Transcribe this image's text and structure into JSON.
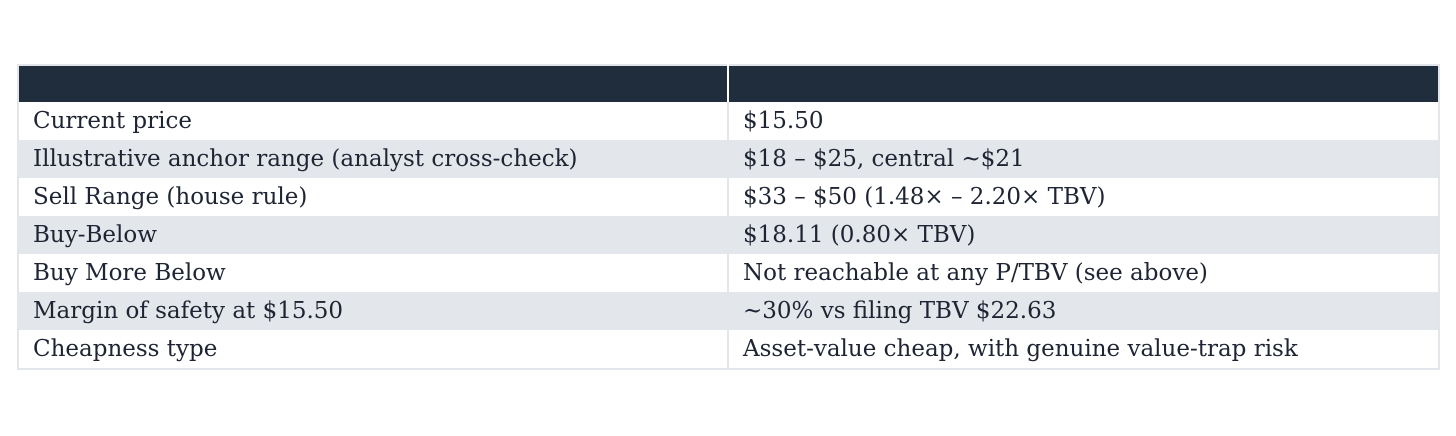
{
  "table": {
    "headers": [
      "",
      ""
    ],
    "rows": [
      {
        "label": "Current price",
        "value": "$15.50"
      },
      {
        "label": "Illustrative anchor range (analyst cross-check)",
        "value": "$18 – $25, central ~$21"
      },
      {
        "label": "Sell Range (house rule)",
        "value": "$33 – $50 (1.48× – 2.20× TBV)"
      },
      {
        "label": "Buy-Below",
        "value": "$18.11 (0.80× TBV)"
      },
      {
        "label": "Buy More Below",
        "value": "Not reachable at any P/TBV (see above)"
      },
      {
        "label": "Margin of safety at $15.50",
        "value": "~30% vs filing TBV $22.63"
      },
      {
        "label": "Cheapness type",
        "value": "Asset-value cheap, with genuine value-trap risk"
      }
    ]
  },
  "colors": {
    "header_bg": "#1f2d3d",
    "row_alt_bg": "#e3e6ea",
    "text": "#1e2433"
  }
}
